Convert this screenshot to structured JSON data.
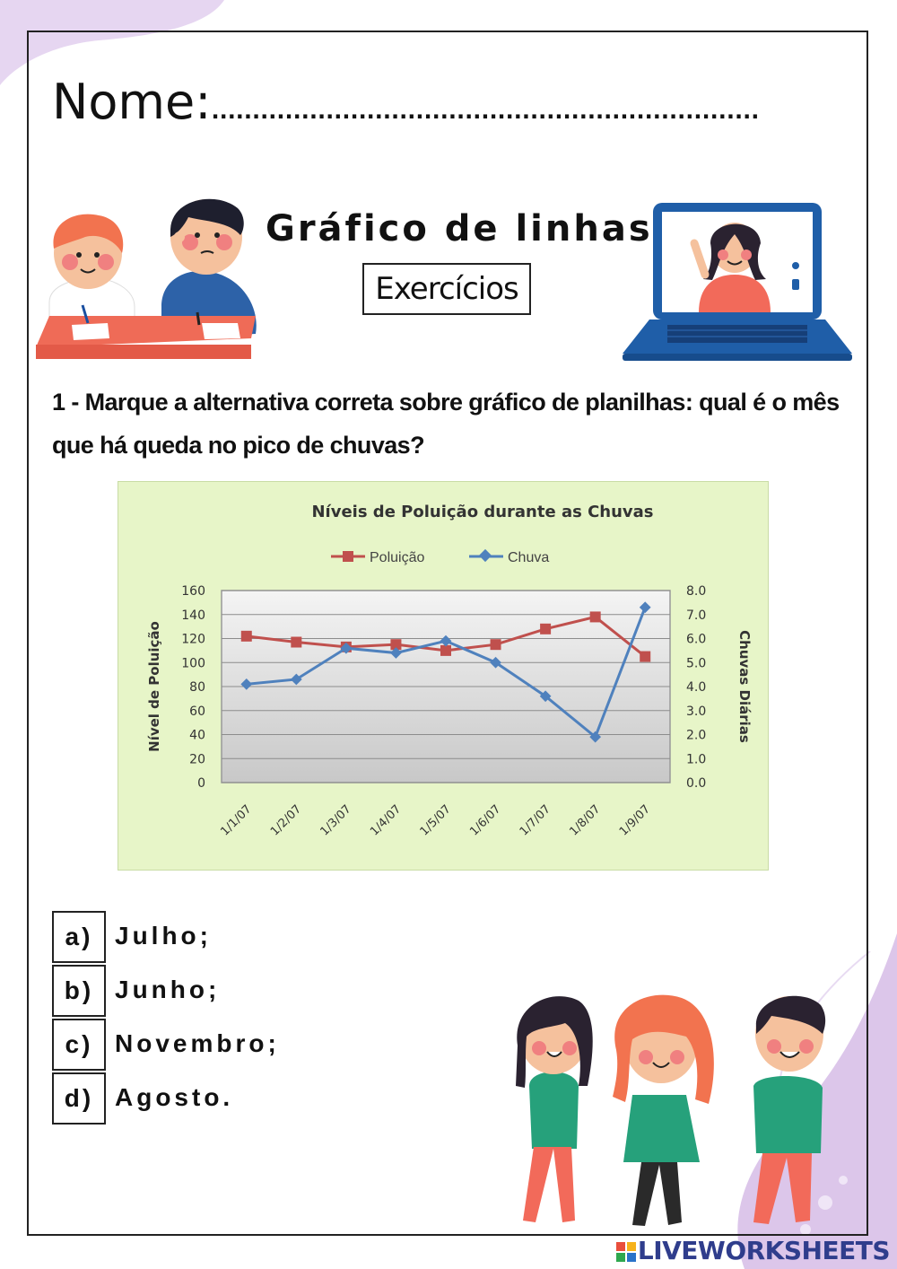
{
  "worksheet": {
    "name_label": "Nome:",
    "name_line": "...................................................................",
    "title": "Gráfico de linhas",
    "subtitle": "Exercícios",
    "question": "1 - Marque a alternativa correta sobre gráfico de planilhas: qual é o mês que há queda no pico de chuvas?",
    "options": [
      {
        "letter": "a)",
        "text": "Julho;"
      },
      {
        "letter": "b)",
        "text": "Junho;"
      },
      {
        "letter": "c)",
        "text": "Novembro;"
      },
      {
        "letter": "d)",
        "text": "Agosto."
      }
    ],
    "watermark": "LIVEWORKSHEETS"
  },
  "chart_data": {
    "type": "line",
    "title": "Níveis de Poluição durante as Chuvas",
    "ylabel": "Nível de Poluição",
    "y2label": "Chuvas Diárias",
    "categories": [
      "1/1/07",
      "1/2/07",
      "1/3/07",
      "1/4/07",
      "1/5/07",
      "1/6/07",
      "1/7/07",
      "1/8/07",
      "1/9/07"
    ],
    "ylim": [
      0,
      160
    ],
    "y2lim": [
      0,
      8
    ],
    "yticks": [
      "0",
      "20",
      "40",
      "60",
      "80",
      "100",
      "120",
      "140",
      "160"
    ],
    "y2ticks": [
      "0.0",
      "1.0",
      "2.0",
      "3.0",
      "4.0",
      "5.0",
      "6.0",
      "7.0",
      "8.0"
    ],
    "grid": true,
    "legend_position": "top",
    "series": [
      {
        "name": "Poluição",
        "axis": "left",
        "marker": "square",
        "color": "#c0504d",
        "values": [
          122,
          117,
          113,
          115,
          110,
          115,
          128,
          138,
          105
        ]
      },
      {
        "name": "Chuva",
        "axis": "right",
        "marker": "diamond",
        "color": "#4f81bd",
        "values": [
          4.1,
          4.3,
          5.6,
          5.4,
          5.9,
          5.0,
          3.6,
          1.9,
          7.3
        ]
      }
    ]
  },
  "colors": {
    "chart_background": "#e7f5c8",
    "plot_background": "#d6d6d6",
    "accent_blob": "#dcc6ea",
    "watermark": "#2f3d8c"
  },
  "illustrations": {
    "top_left": "kids-writing-at-desk",
    "top_right": "laptop-video-call-girl",
    "bottom_right": "three-kids-walking"
  }
}
